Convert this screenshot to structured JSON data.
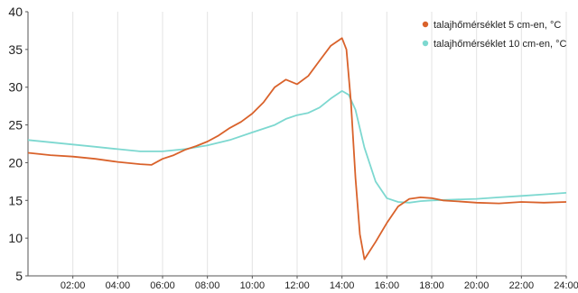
{
  "chart_data": {
    "type": "line",
    "title": "",
    "xlabel": "",
    "ylabel": "",
    "xlim": [
      0,
      24
    ],
    "ylim": [
      5,
      40
    ],
    "yticks": [
      "5",
      "10",
      "15",
      "20",
      "25",
      "30",
      "35",
      "40"
    ],
    "xticks": [
      "02:00",
      "04:00",
      "06:00",
      "08:00",
      "10:00",
      "12:00",
      "14:00",
      "16:00",
      "18:00",
      "20:00",
      "22:00",
      "24:00"
    ],
    "grid": "vertical",
    "legend_position": "top-right",
    "series": [
      {
        "name": "talajhőmérséklet 5 cm-en, °C",
        "color": "#d9622b",
        "x": [
          0,
          1,
          2,
          3,
          4,
          5,
          5.5,
          6,
          6.5,
          7,
          7.5,
          8,
          8.5,
          9,
          9.5,
          10,
          10.5,
          11,
          11.5,
          12,
          12.5,
          13,
          13.5,
          14,
          14.2,
          14.4,
          14.6,
          14.8,
          15,
          15.5,
          16,
          16.5,
          17,
          17.5,
          18,
          18.5,
          19,
          20,
          21,
          22,
          23,
          24
        ],
        "y": [
          21.3,
          21.0,
          20.8,
          20.5,
          20.1,
          19.8,
          19.7,
          20.5,
          21.0,
          21.7,
          22.2,
          22.8,
          23.6,
          24.6,
          25.4,
          26.5,
          28.0,
          30.0,
          31.0,
          30.4,
          31.5,
          33.5,
          35.5,
          36.5,
          35.0,
          28.0,
          18.0,
          10.5,
          7.2,
          9.5,
          12.0,
          14.2,
          15.2,
          15.4,
          15.3,
          15.0,
          14.9,
          14.7,
          14.6,
          14.8,
          14.7,
          14.8
        ]
      },
      {
        "name": "talajhőmérséklet 10 cm-en, °C",
        "color": "#7dd8d0",
        "x": [
          0,
          1,
          2,
          3,
          4,
          5,
          6,
          7,
          8,
          9,
          10,
          11,
          11.5,
          12,
          12.5,
          13,
          13.5,
          14,
          14.3,
          14.6,
          15,
          15.5,
          16,
          16.5,
          17,
          17.5,
          18,
          19,
          20,
          21,
          22,
          23,
          24
        ],
        "y": [
          23.0,
          22.7,
          22.4,
          22.1,
          21.8,
          21.5,
          21.5,
          21.8,
          22.3,
          23.0,
          24.0,
          25.0,
          25.8,
          26.3,
          26.6,
          27.3,
          28.5,
          29.5,
          29.0,
          27.0,
          22.0,
          17.5,
          15.3,
          14.8,
          14.7,
          14.9,
          15.0,
          15.1,
          15.2,
          15.4,
          15.6,
          15.8,
          16.0
        ]
      }
    ]
  }
}
